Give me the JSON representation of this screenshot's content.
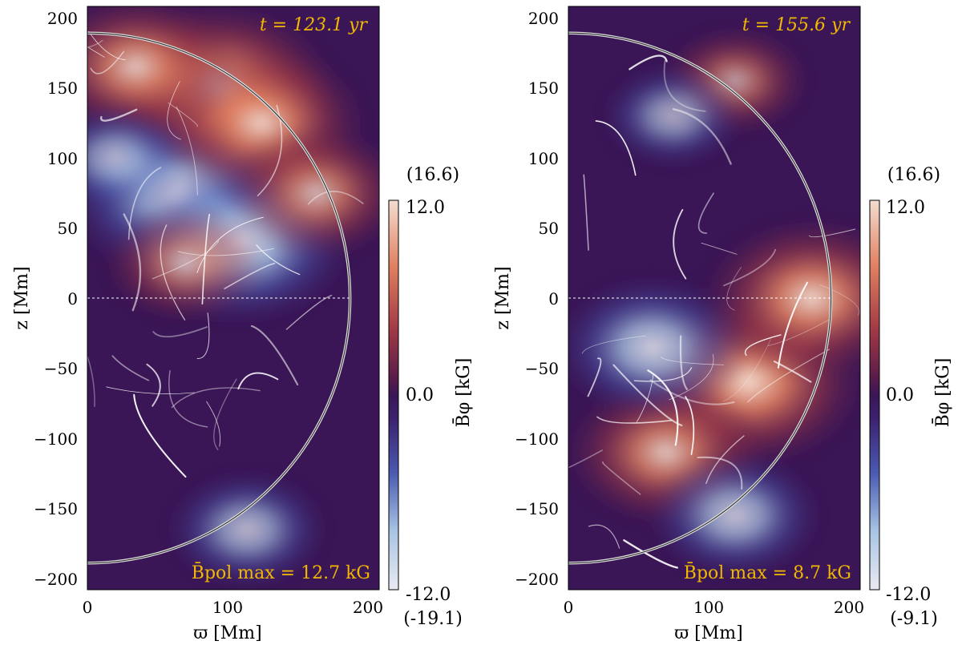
{
  "chart_data": [
    {
      "type": "heatmap",
      "title": "",
      "time_label": "t = 123.1 yr",
      "bpol_label": "B̄pol max = 12.7 kG",
      "xlabel": "ϖ [Mm]",
      "ylabel": "z [Mm]",
      "xlim": [
        0,
        210
      ],
      "ylim": [
        -208,
        208
      ],
      "xticks": [
        "0",
        "100",
        "200"
      ],
      "yticks": [
        "200",
        "150",
        "100",
        "50",
        "0",
        "−50",
        "−100",
        "−150",
        "−200"
      ],
      "grid": false,
      "equator_dashed": true,
      "star_radius_mm": 189,
      "colorbar": {
        "label": "B̄φ [kG]",
        "range": [
          -12.0,
          12.0
        ],
        "ticks": [
          "12.0",
          "0.0",
          "-12.0"
        ],
        "max_actual": "(16.6)",
        "min_actual": "(-19.1)"
      },
      "blobs": [
        {
          "x": 65,
          "y": 75,
          "kind": "neg",
          "strength": 1.0
        },
        {
          "x": 110,
          "y": 40,
          "kind": "neg",
          "strength": 0.95
        },
        {
          "x": 95,
          "y": 150,
          "kind": "pos",
          "strength": 1.0
        },
        {
          "x": 125,
          "y": 125,
          "kind": "pos",
          "strength": 0.85
        },
        {
          "x": 35,
          "y": 165,
          "kind": "pos",
          "strength": 0.75
        },
        {
          "x": 165,
          "y": 75,
          "kind": "pos",
          "strength": 0.6
        },
        {
          "x": 70,
          "y": 25,
          "kind": "pos",
          "strength": 0.45
        },
        {
          "x": 115,
          "y": -165,
          "kind": "neg",
          "strength": 0.45
        },
        {
          "x": 20,
          "y": 100,
          "kind": "neg",
          "strength": 0.35
        }
      ]
    },
    {
      "type": "heatmap",
      "title": "",
      "time_label": "t = 155.6 yr",
      "bpol_label": "B̄pol max = 8.7 kG",
      "xlabel": "ϖ [Mm]",
      "ylabel": "z [Mm]",
      "xlim": [
        0,
        210
      ],
      "ylim": [
        -208,
        208
      ],
      "xticks": [
        "0",
        "100",
        "200"
      ],
      "yticks": [
        "200",
        "150",
        "100",
        "50",
        "0",
        "−50",
        "−100",
        "−150",
        "−200"
      ],
      "grid": false,
      "equator_dashed": true,
      "star_radius_mm": 189,
      "colorbar": {
        "label": "B̄φ [kG]",
        "range": [
          -12.0,
          12.0
        ],
        "ticks": [
          "12.0",
          "0.0",
          "-12.0"
        ],
        "max_actual": "(16.6)",
        "min_actual": "(-9.1)"
      },
      "blobs": [
        {
          "x": 130,
          "y": -60,
          "kind": "pos",
          "strength": 1.0
        },
        {
          "x": 175,
          "y": 0,
          "kind": "pos",
          "strength": 0.9
        },
        {
          "x": 70,
          "y": -110,
          "kind": "pos",
          "strength": 0.75
        },
        {
          "x": 60,
          "y": -35,
          "kind": "neg",
          "strength": 0.7
        },
        {
          "x": 120,
          "y": -155,
          "kind": "neg",
          "strength": 0.55
        },
        {
          "x": 120,
          "y": 155,
          "kind": "pos",
          "strength": 0.35
        },
        {
          "x": 75,
          "y": 130,
          "kind": "neg",
          "strength": 0.3
        }
      ]
    }
  ],
  "colors": {
    "background": "#3a1656",
    "positive": [
      "#5e1d4a",
      "#a13a45",
      "#e08060",
      "#f4ddd0"
    ],
    "negative": [
      "#3d2170",
      "#4a5ab0",
      "#a8c4e4",
      "#eaeaf2"
    ],
    "annotation": "#f2b800",
    "stream": "#ffffff"
  }
}
